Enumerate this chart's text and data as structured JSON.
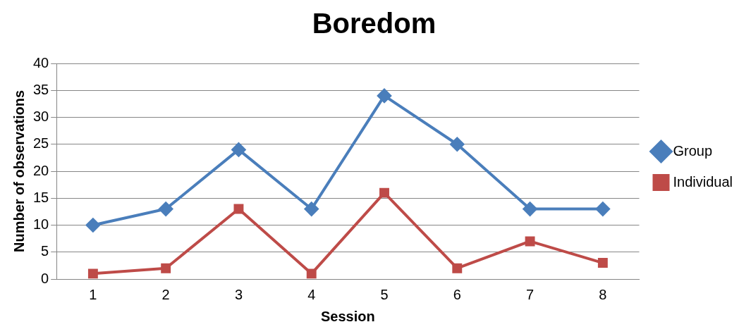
{
  "chart_data": {
    "type": "line",
    "title": "Boredom",
    "xlabel": "Session",
    "ylabel": "Number of observations",
    "categories": [
      "1",
      "2",
      "3",
      "4",
      "5",
      "6",
      "7",
      "8"
    ],
    "series": [
      {
        "name": "Group",
        "color": "#4a7ebb",
        "marker": "diamond",
        "values": [
          10,
          13,
          24,
          13,
          34,
          25,
          13,
          13
        ]
      },
      {
        "name": "Individual",
        "color": "#be4b48",
        "marker": "square",
        "values": [
          1,
          2,
          13,
          1,
          16,
          2,
          7,
          3
        ]
      }
    ],
    "ylim": [
      0,
      40
    ],
    "yticks": [
      0,
      5,
      10,
      15,
      20,
      25,
      30,
      35,
      40
    ],
    "grid": "y",
    "legend": "right",
    "line_style": "solid"
  }
}
